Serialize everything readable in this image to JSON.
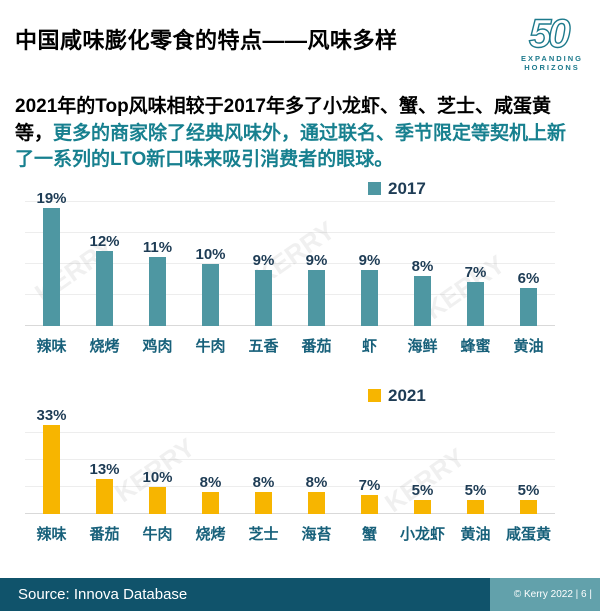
{
  "header": {
    "title": "中国咸味膨化零食的特点——风味多样",
    "logo": {
      "number": "50",
      "line1": "EXPANDING",
      "line2": "HORIZONS"
    }
  },
  "intro": {
    "text_black": "2021年的Top风味相较于2017年多了小龙虾、蟹、芝士、咸蛋黄等，",
    "text_teal": "更多的商家除了经典风味外，通过联名、季节限定等契机上新了一系列的LTO新口味来吸引消费者的眼球。"
  },
  "chart_data": [
    {
      "type": "bar",
      "legend": "2017",
      "legend_color": "#4E97A2",
      "bar_color": "#4E97A2",
      "categories": [
        "辣味",
        "烧烤",
        "鸡肉",
        "牛肉",
        "五香",
        "番茄",
        "虾",
        "海鲜",
        "蜂蜜",
        "黄油"
      ],
      "values": [
        19,
        12,
        11,
        10,
        9,
        9,
        9,
        8,
        7,
        6
      ],
      "unit": "%",
      "ylim": [
        0,
        20
      ],
      "grid_step": 5,
      "legend_position": "top-center-right",
      "grid": "on"
    },
    {
      "type": "bar",
      "legend": "2021",
      "legend_color": "#F7B500",
      "bar_color": "#F7B500",
      "categories": [
        "辣味",
        "番茄",
        "牛肉",
        "烧烤",
        "芝士",
        "海苔",
        "蟹",
        "小龙虾",
        "黄油",
        "咸蛋黄"
      ],
      "values": [
        33,
        13,
        10,
        8,
        8,
        8,
        7,
        5,
        5,
        5
      ],
      "unit": "%",
      "ylim": [
        0,
        35
      ],
      "grid_step": 10,
      "legend_position": "top-center-right",
      "grid": "on"
    }
  ],
  "footer": {
    "source": "Source: Innova Database",
    "copyright": "© Kerry 2022 | 6 |"
  },
  "watermark": {
    "text": "KERRY"
  },
  "colors": {
    "accent_teal": "#4E97A2",
    "accent_gold": "#F7B500",
    "value_label": "#1E3C55",
    "category_label": "#17607A",
    "paragraph_teal": "#17808F",
    "footer_dark": "#10536B",
    "footer_light": "#62A1AB",
    "logo_teal": "#1D7A8C"
  }
}
